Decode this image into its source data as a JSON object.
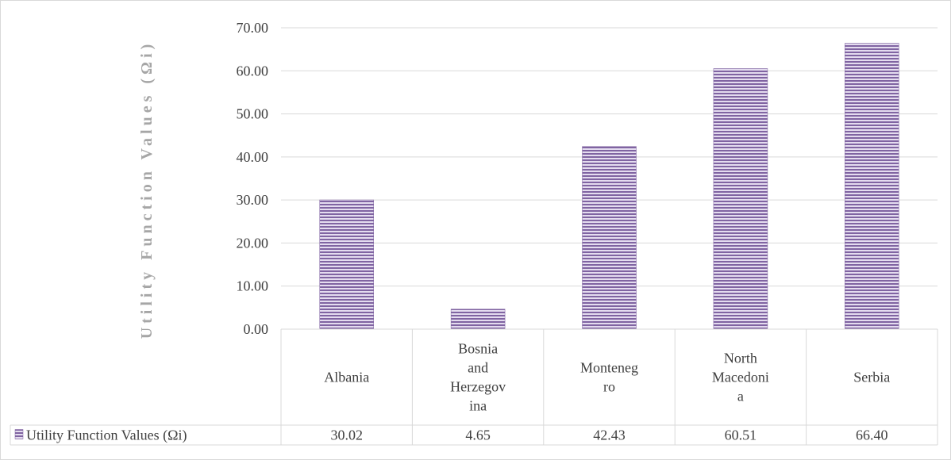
{
  "chart_data": {
    "type": "bar",
    "title": "",
    "xlabel": "",
    "ylabel": "Utility Function Values (Ωi)",
    "categories": [
      "Albania",
      "Bosnia and Herzegovina",
      "Montenegro",
      "North Macedonia",
      "Serbia"
    ],
    "category_display_lines": [
      [
        "Albania"
      ],
      [
        "Bosnia",
        "and",
        "Herzegov",
        "ina"
      ],
      [
        "Monteneg",
        "ro"
      ],
      [
        "North",
        "Macedoni",
        "a"
      ],
      [
        "Serbia"
      ]
    ],
    "series": [
      {
        "name": "Utility Function Values (Ωi)",
        "values": [
          30.02,
          4.65,
          42.43,
          60.51,
          66.4
        ],
        "value_labels": [
          "30.02",
          "4.65",
          "42.43",
          "60.51",
          "66.40"
        ],
        "fill_pattern": "horizontal-stripes",
        "color": "#8064a2"
      }
    ],
    "ylim": [
      0,
      70
    ],
    "y_ticks": [
      0,
      10,
      20,
      30,
      40,
      50,
      60,
      70
    ],
    "y_tick_labels": [
      "0.00",
      "10.00",
      "20.00",
      "30.00",
      "40.00",
      "50.00",
      "60.00",
      "70.00"
    ],
    "grid": true,
    "legend": "data-table"
  },
  "colors": {
    "bar_stripe_dark": "#8064a2",
    "bar_stripe_light": "#e4dcef",
    "grid": "#d9d9d9",
    "text": "#404040",
    "axis_title": "#a6a6a6"
  }
}
